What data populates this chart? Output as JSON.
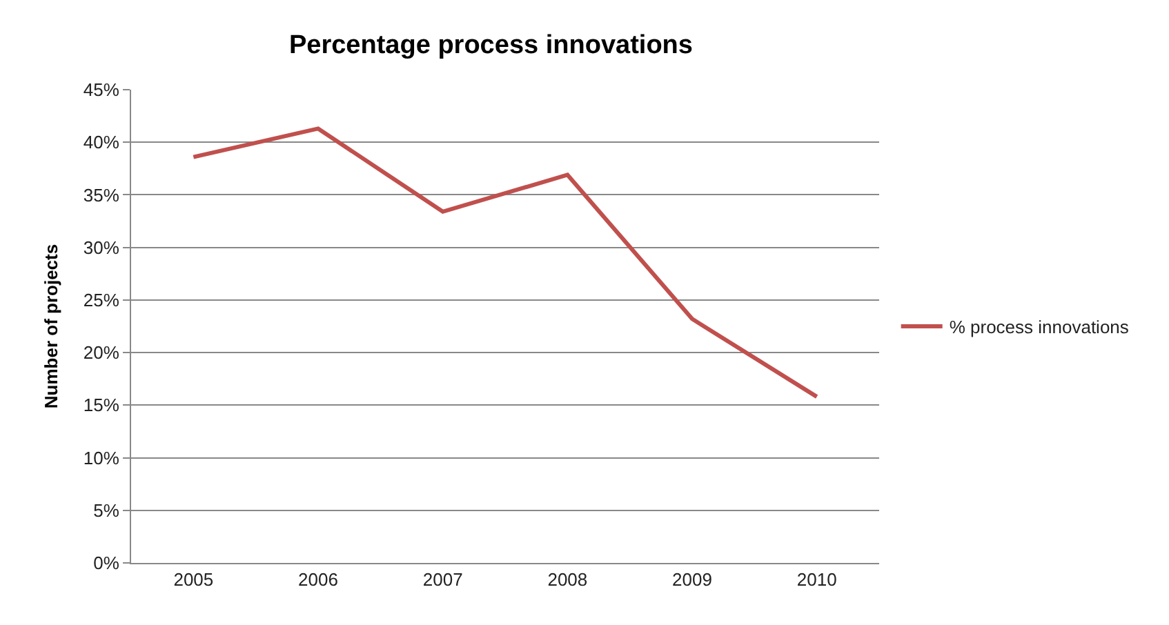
{
  "chart_data": {
    "type": "line",
    "title": "Percentage process innovations",
    "ylabel": "Number of projects",
    "categories": [
      "2005",
      "2006",
      "2007",
      "2008",
      "2009",
      "2010"
    ],
    "series": [
      {
        "name": "% process innovations",
        "color": "#c0504d",
        "values": [
          38.6,
          41.3,
          33.4,
          36.9,
          23.2,
          15.8
        ]
      }
    ],
    "ylim": [
      0,
      45
    ],
    "yticks": [
      {
        "value": 0,
        "label": "0%"
      },
      {
        "value": 5,
        "label": "5%"
      },
      {
        "value": 10,
        "label": "10%"
      },
      {
        "value": 15,
        "label": "15%"
      },
      {
        "value": 20,
        "label": "20%"
      },
      {
        "value": 25,
        "label": "25%"
      },
      {
        "value": 30,
        "label": "30%"
      },
      {
        "value": 35,
        "label": "35%"
      },
      {
        "value": 40,
        "label": "40%"
      },
      {
        "value": 45,
        "label": "45%"
      }
    ],
    "grid": "y",
    "legend": "right",
    "marker": "none",
    "line_style": "solid"
  }
}
